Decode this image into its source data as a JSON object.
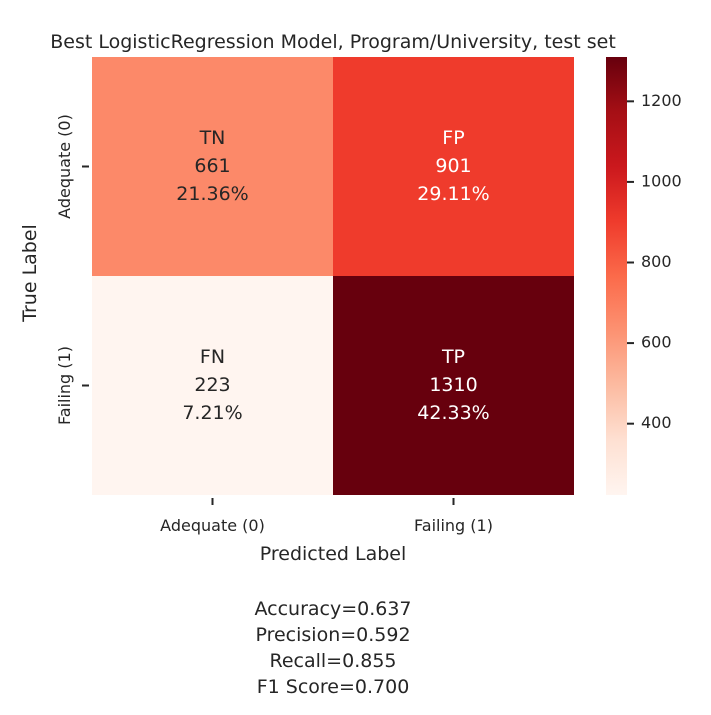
{
  "chart_data": {
    "type": "heatmap",
    "title": "Best LogisticRegression Model, Program/University, test set",
    "xlabel": "Predicted Label",
    "ylabel": "True Label",
    "x_categories": [
      "Adequate (0)",
      "Failing (1)"
    ],
    "y_categories": [
      "Adequate (0)",
      "Failing (1)"
    ],
    "cells": [
      [
        {
          "name": "TN",
          "count": "661",
          "percent": "21.36%",
          "value": 661
        },
        {
          "name": "FP",
          "count": "901",
          "percent": "29.11%",
          "value": 901
        }
      ],
      [
        {
          "name": "FN",
          "count": "223",
          "percent": "7.21%",
          "value": 223
        },
        {
          "name": "TP",
          "count": "1310",
          "percent": "42.33%",
          "value": 1310
        }
      ]
    ],
    "colorbar": {
      "min": 223,
      "max": 1310,
      "ticks": [
        "400",
        "600",
        "800",
        "1000",
        "1200"
      ],
      "colormap": "Reds"
    },
    "metrics": [
      "Accuracy=0.637",
      "Precision=0.592",
      "Recall=0.855",
      "F1 Score=0.700"
    ]
  }
}
